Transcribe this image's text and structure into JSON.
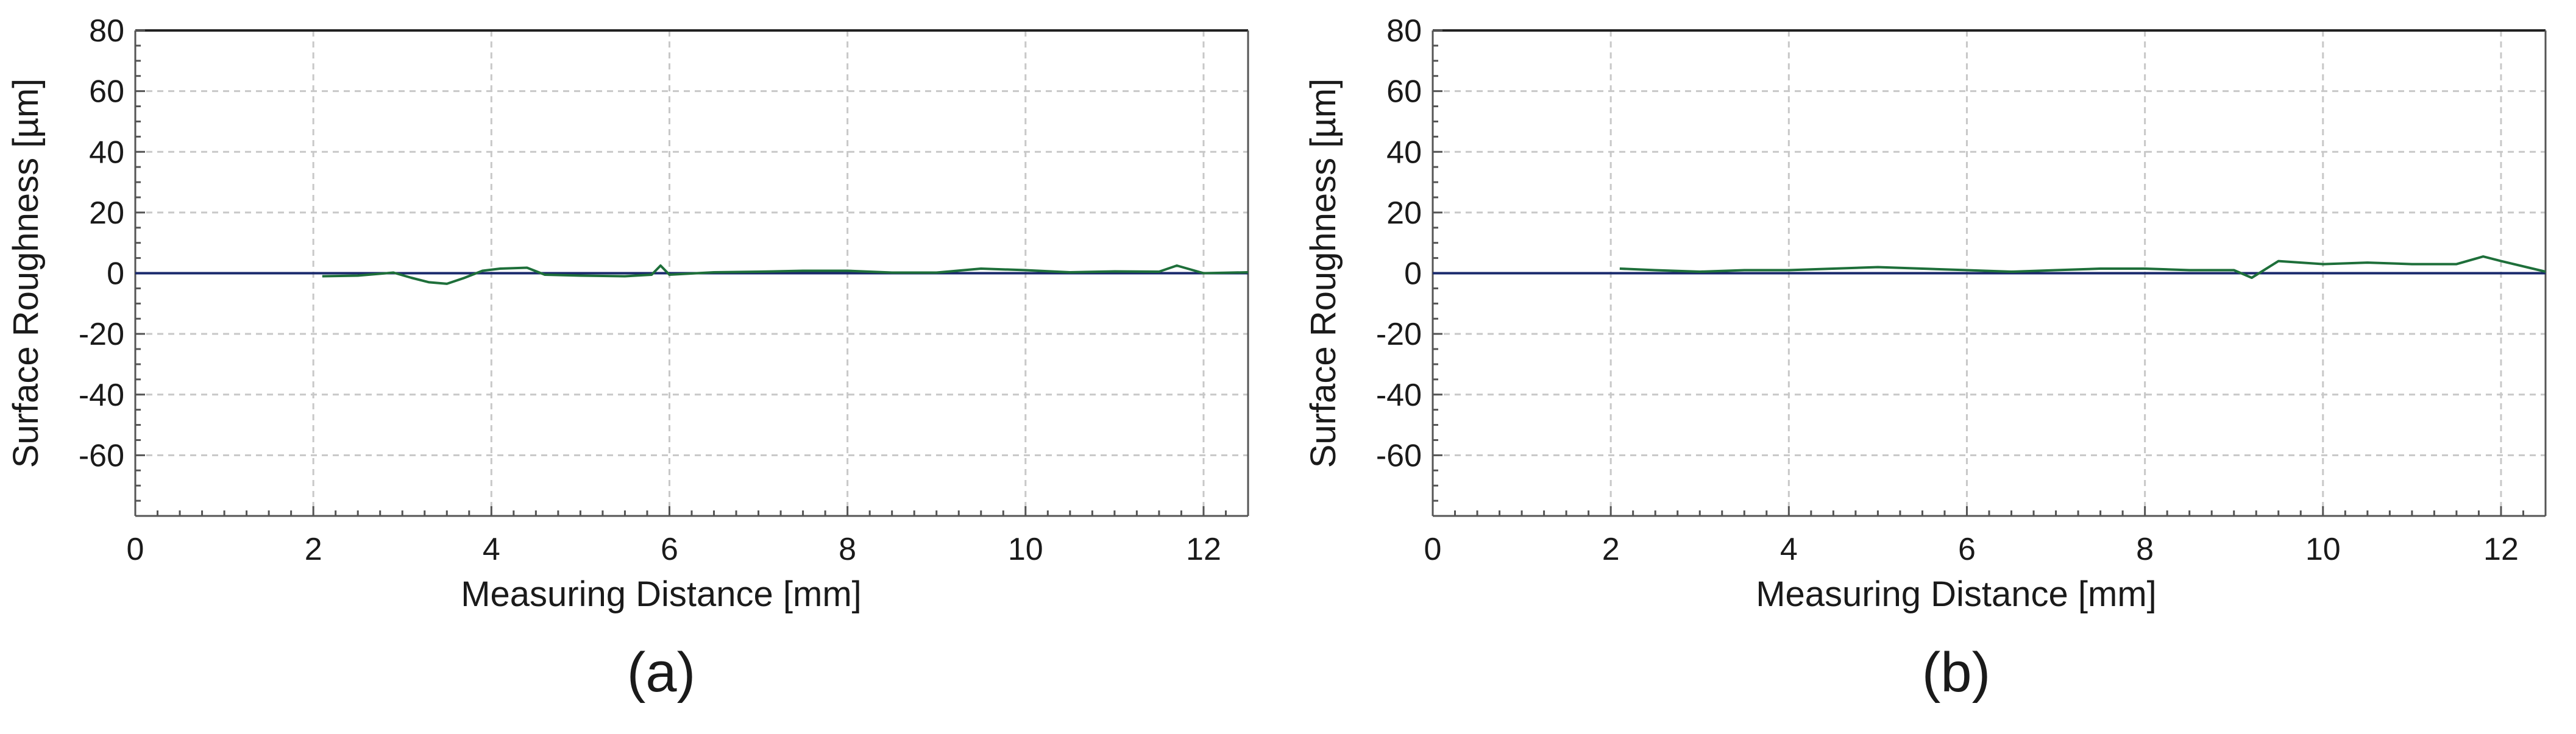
{
  "chart_data": [
    {
      "type": "line",
      "panel_label": "(a)",
      "xlabel": "Measuring Distance [mm]",
      "ylabel": "Surface Roughness [µm]",
      "xlim": [
        0,
        12.5
      ],
      "ylim": [
        -80,
        80
      ],
      "x_ticks": [
        0,
        2,
        4,
        6,
        8,
        10,
        12
      ],
      "y_ticks": [
        80,
        60,
        40,
        20,
        0,
        -20,
        -40,
        -60
      ],
      "grid": true,
      "zero_line": true,
      "colors": {
        "profile": "#1e6f3a",
        "zero_line": "#1a2a6c",
        "grid": "#c8c8c8",
        "axis": "#555555"
      },
      "series": [
        {
          "x": [
            2.1,
            2.5,
            2.9,
            3.1,
            3.3,
            3.5,
            3.7,
            3.9,
            4.1,
            4.4,
            4.6,
            5.0,
            5.5,
            5.8,
            5.9,
            6.0,
            6.5,
            7.0,
            7.5,
            8.0,
            8.5,
            9.0,
            9.5,
            10.0,
            10.5,
            11.0,
            11.5,
            11.7,
            12.0,
            12.5
          ],
          "y": [
            -1.0,
            -0.8,
            0.2,
            -1.5,
            -3.0,
            -3.5,
            -1.5,
            0.8,
            1.5,
            1.8,
            -0.5,
            -0.8,
            -1.0,
            -0.5,
            2.5,
            -0.5,
            0.3,
            0.5,
            0.8,
            0.8,
            0.2,
            0.2,
            1.5,
            1.0,
            0.3,
            0.6,
            0.5,
            2.5,
            0.0,
            0.3
          ]
        }
      ]
    },
    {
      "type": "line",
      "panel_label": "(b)",
      "xlabel": "Measuring Distance [mm]",
      "ylabel": "Surface Roughness [µm]",
      "xlim": [
        0,
        12.5
      ],
      "ylim": [
        -80,
        80
      ],
      "x_ticks": [
        0,
        2,
        4,
        6,
        8,
        10,
        12
      ],
      "y_ticks": [
        80,
        60,
        40,
        20,
        0,
        -20,
        -40,
        -60
      ],
      "grid": true,
      "zero_line": true,
      "colors": {
        "profile": "#1e6f3a",
        "zero_line": "#1a2a6c",
        "grid": "#c8c8c8",
        "axis": "#555555"
      },
      "series": [
        {
          "x": [
            2.1,
            2.5,
            3.0,
            3.5,
            4.0,
            4.5,
            5.0,
            5.5,
            6.0,
            6.5,
            7.0,
            7.5,
            8.0,
            8.5,
            9.0,
            9.2,
            9.5,
            10.0,
            10.5,
            11.0,
            11.5,
            11.8,
            12.0,
            12.5
          ],
          "y": [
            1.5,
            1.0,
            0.5,
            1.0,
            1.0,
            1.5,
            2.0,
            1.5,
            1.0,
            0.5,
            1.0,
            1.5,
            1.5,
            1.0,
            1.0,
            -1.5,
            4.0,
            3.0,
            3.5,
            3.0,
            3.0,
            5.5,
            4.0,
            0.5
          ]
        }
      ]
    }
  ]
}
